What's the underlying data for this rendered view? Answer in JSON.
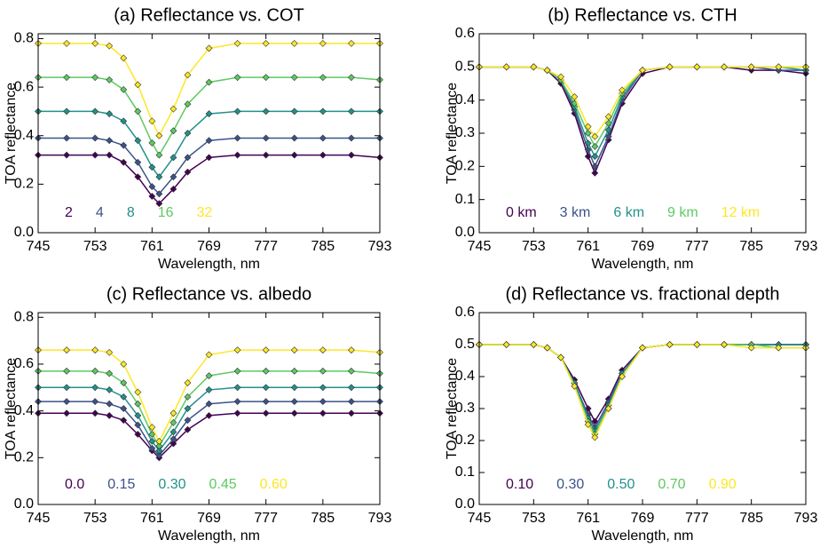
{
  "chart_data": [
    {
      "type": "line",
      "title": "(a) Reflectance vs. COT",
      "xlabel": "Wavelength, nm",
      "ylabel": "TOA reflectance",
      "x": [
        745,
        749,
        753,
        755,
        757,
        759,
        761,
        762,
        764,
        766,
        769,
        773,
        777,
        781,
        785,
        789,
        793
      ],
      "xlim": [
        745,
        793
      ],
      "xticks": [
        745,
        753,
        761,
        769,
        777,
        785,
        793
      ],
      "ylim": [
        0,
        0.82
      ],
      "yticks": [
        {
          "value": 0,
          "label": "0.0"
        },
        0.2,
        0.4,
        0.6,
        0.8
      ],
      "series": [
        {
          "name": "2",
          "color": "#440154",
          "values": [
            0.32,
            0.32,
            0.32,
            0.32,
            0.29,
            0.23,
            0.15,
            0.12,
            0.18,
            0.25,
            0.31,
            0.32,
            0.32,
            0.32,
            0.32,
            0.32,
            0.31
          ]
        },
        {
          "name": "4",
          "color": "#3b528b",
          "values": [
            0.39,
            0.39,
            0.39,
            0.38,
            0.36,
            0.29,
            0.19,
            0.16,
            0.23,
            0.31,
            0.38,
            0.39,
            0.39,
            0.39,
            0.39,
            0.39,
            0.39
          ]
        },
        {
          "name": "8",
          "color": "#21918c",
          "values": [
            0.5,
            0.5,
            0.5,
            0.49,
            0.46,
            0.38,
            0.27,
            0.23,
            0.31,
            0.41,
            0.49,
            0.5,
            0.5,
            0.5,
            0.5,
            0.5,
            0.5
          ]
        },
        {
          "name": "16",
          "color": "#5ec962",
          "values": [
            0.64,
            0.64,
            0.64,
            0.63,
            0.59,
            0.5,
            0.37,
            0.32,
            0.42,
            0.53,
            0.62,
            0.64,
            0.64,
            0.64,
            0.64,
            0.64,
            0.63
          ]
        },
        {
          "name": "32",
          "color": "#fde725",
          "values": [
            0.78,
            0.78,
            0.78,
            0.77,
            0.72,
            0.61,
            0.46,
            0.4,
            0.51,
            0.65,
            0.76,
            0.78,
            0.78,
            0.78,
            0.78,
            0.78,
            0.78
          ]
        }
      ]
    },
    {
      "type": "line",
      "title": "(b) Reflectance vs. CTH",
      "xlabel": "Wavelength, nm",
      "ylabel": "TOA reflectance",
      "x": [
        745,
        749,
        753,
        755,
        757,
        759,
        761,
        762,
        764,
        766,
        769,
        773,
        777,
        781,
        785,
        789,
        793
      ],
      "xlim": [
        745,
        793
      ],
      "xticks": [
        745,
        753,
        761,
        769,
        777,
        785,
        793
      ],
      "ylim": [
        0,
        0.6
      ],
      "yticks": [
        {
          "value": 0,
          "label": "0.0"
        },
        0.1,
        0.2,
        0.3,
        0.4,
        0.5,
        0.6
      ],
      "series": [
        {
          "name": "0 km",
          "color": "#440154",
          "values": [
            0.5,
            0.5,
            0.5,
            0.49,
            0.45,
            0.36,
            0.23,
            0.18,
            0.28,
            0.39,
            0.48,
            0.5,
            0.5,
            0.5,
            0.49,
            0.49,
            0.48
          ]
        },
        {
          "name": "3 km",
          "color": "#3b528b",
          "values": [
            0.5,
            0.5,
            0.5,
            0.49,
            0.46,
            0.37,
            0.25,
            0.2,
            0.29,
            0.4,
            0.49,
            0.5,
            0.5,
            0.5,
            0.5,
            0.49,
            0.49
          ]
        },
        {
          "name": "6 km",
          "color": "#21918c",
          "values": [
            0.5,
            0.5,
            0.5,
            0.49,
            0.46,
            0.38,
            0.27,
            0.23,
            0.31,
            0.41,
            0.49,
            0.5,
            0.5,
            0.5,
            0.5,
            0.5,
            0.49
          ]
        },
        {
          "name": "9 km",
          "color": "#5ec962",
          "values": [
            0.5,
            0.5,
            0.5,
            0.49,
            0.46,
            0.39,
            0.3,
            0.26,
            0.33,
            0.42,
            0.49,
            0.5,
            0.5,
            0.5,
            0.5,
            0.5,
            0.5
          ]
        },
        {
          "name": "12 km",
          "color": "#fde725",
          "values": [
            0.5,
            0.5,
            0.5,
            0.49,
            0.47,
            0.41,
            0.32,
            0.29,
            0.35,
            0.43,
            0.49,
            0.5,
            0.5,
            0.5,
            0.5,
            0.5,
            0.5
          ]
        }
      ]
    },
    {
      "type": "line",
      "title": "(c) Reflectance vs. albedo",
      "xlabel": "Wavelength, nm",
      "ylabel": "TOA reflectance",
      "x": [
        745,
        749,
        753,
        755,
        757,
        759,
        761,
        762,
        764,
        766,
        769,
        773,
        777,
        781,
        785,
        789,
        793
      ],
      "xlim": [
        745,
        793
      ],
      "xticks": [
        745,
        753,
        761,
        769,
        777,
        785,
        793
      ],
      "ylim": [
        0,
        0.82
      ],
      "yticks": [
        {
          "value": 0,
          "label": "0.0"
        },
        0.2,
        0.4,
        0.6,
        0.8
      ],
      "series": [
        {
          "name": "0.0",
          "color": "#440154",
          "values": [
            0.39,
            0.39,
            0.39,
            0.38,
            0.36,
            0.3,
            0.23,
            0.2,
            0.26,
            0.32,
            0.38,
            0.39,
            0.39,
            0.39,
            0.39,
            0.39,
            0.39
          ]
        },
        {
          "name": "0.15",
          "color": "#3b528b",
          "values": [
            0.44,
            0.44,
            0.44,
            0.43,
            0.41,
            0.34,
            0.24,
            0.21,
            0.28,
            0.36,
            0.43,
            0.44,
            0.44,
            0.44,
            0.44,
            0.44,
            0.44
          ]
        },
        {
          "name": "0.30",
          "color": "#21918c",
          "values": [
            0.5,
            0.5,
            0.5,
            0.49,
            0.46,
            0.38,
            0.27,
            0.23,
            0.31,
            0.41,
            0.49,
            0.5,
            0.5,
            0.5,
            0.5,
            0.5,
            0.5
          ]
        },
        {
          "name": "0.45",
          "color": "#5ec962",
          "values": [
            0.57,
            0.57,
            0.57,
            0.56,
            0.52,
            0.43,
            0.3,
            0.25,
            0.35,
            0.46,
            0.55,
            0.57,
            0.57,
            0.57,
            0.57,
            0.57,
            0.56
          ]
        },
        {
          "name": "0.60",
          "color": "#fde725",
          "values": [
            0.66,
            0.66,
            0.66,
            0.65,
            0.6,
            0.48,
            0.33,
            0.27,
            0.39,
            0.52,
            0.64,
            0.66,
            0.66,
            0.66,
            0.66,
            0.66,
            0.65
          ]
        }
      ]
    },
    {
      "type": "line",
      "title": "(d) Reflectance vs. fractional depth",
      "xlabel": "Wavelength, nm",
      "ylabel": "TOA reflectance",
      "x": [
        745,
        749,
        753,
        755,
        757,
        759,
        761,
        762,
        764,
        766,
        769,
        773,
        777,
        781,
        785,
        789,
        793
      ],
      "xlim": [
        745,
        793
      ],
      "xticks": [
        745,
        753,
        761,
        769,
        777,
        785,
        793
      ],
      "ylim": [
        0,
        0.6
      ],
      "yticks": [
        {
          "value": 0,
          "label": "0.0"
        },
        0.1,
        0.2,
        0.3,
        0.4,
        0.5,
        0.6
      ],
      "series": [
        {
          "name": "0.10",
          "color": "#440154",
          "values": [
            0.5,
            0.5,
            0.5,
            0.49,
            0.46,
            0.39,
            0.3,
            0.26,
            0.33,
            0.42,
            0.49,
            0.5,
            0.5,
            0.5,
            0.5,
            0.5,
            0.5
          ]
        },
        {
          "name": "0.30",
          "color": "#3b528b",
          "values": [
            0.5,
            0.5,
            0.5,
            0.49,
            0.46,
            0.38,
            0.28,
            0.24,
            0.32,
            0.41,
            0.49,
            0.5,
            0.5,
            0.5,
            0.5,
            0.5,
            0.5
          ]
        },
        {
          "name": "0.50",
          "color": "#21918c",
          "values": [
            0.5,
            0.5,
            0.5,
            0.49,
            0.46,
            0.38,
            0.27,
            0.23,
            0.31,
            0.41,
            0.49,
            0.5,
            0.5,
            0.5,
            0.5,
            0.5,
            0.5
          ]
        },
        {
          "name": "0.70",
          "color": "#5ec962",
          "values": [
            0.5,
            0.5,
            0.5,
            0.49,
            0.46,
            0.37,
            0.26,
            0.22,
            0.3,
            0.4,
            0.49,
            0.5,
            0.5,
            0.5,
            0.5,
            0.49,
            0.49
          ]
        },
        {
          "name": "0.90",
          "color": "#fde725",
          "values": [
            0.5,
            0.5,
            0.5,
            0.49,
            0.46,
            0.37,
            0.25,
            0.21,
            0.3,
            0.4,
            0.49,
            0.5,
            0.5,
            0.5,
            0.49,
            0.49,
            0.49
          ]
        }
      ]
    }
  ]
}
